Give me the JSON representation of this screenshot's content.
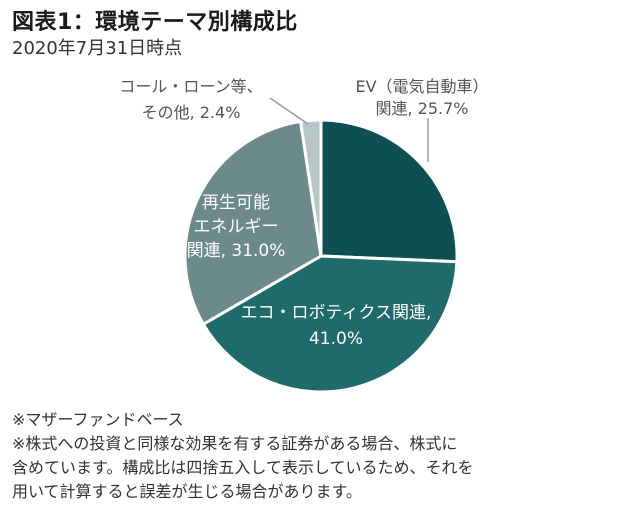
{
  "header": {
    "title": "図表1：環境テーマ別構成比",
    "date": "2020年7月31日時点"
  },
  "notes": [
    "※マザーファンドベース",
    "※株式への投資と同様な効果を有する証券がある場合、株式に",
    "含めています。構成比は四捨五入して表示しているため、それを",
    "用いて計算すると誤差が生じる場合があります。"
  ],
  "chart_data": {
    "type": "pie",
    "start": "12 o'clock",
    "direction": "clockwise",
    "slices": [
      {
        "lines": [
          "EV（電気自動車）",
          "関連, 25.7%"
        ],
        "value": 25.7,
        "color": "#0e4f52"
      },
      {
        "lines": [
          "エコ・ロボティクス関連,",
          "41.0%"
        ],
        "value": 41.0,
        "color": "#1f6b6b"
      },
      {
        "lines": [
          "再生可能",
          "エネルギー",
          "関連, 31.0%"
        ],
        "value": 31.0,
        "color": "#6c8a8c"
      },
      {
        "lines": [
          "コール・ローン等、",
          "その他, 2.4%"
        ],
        "value": 2.4,
        "color": "#b7c5c7"
      }
    ]
  }
}
